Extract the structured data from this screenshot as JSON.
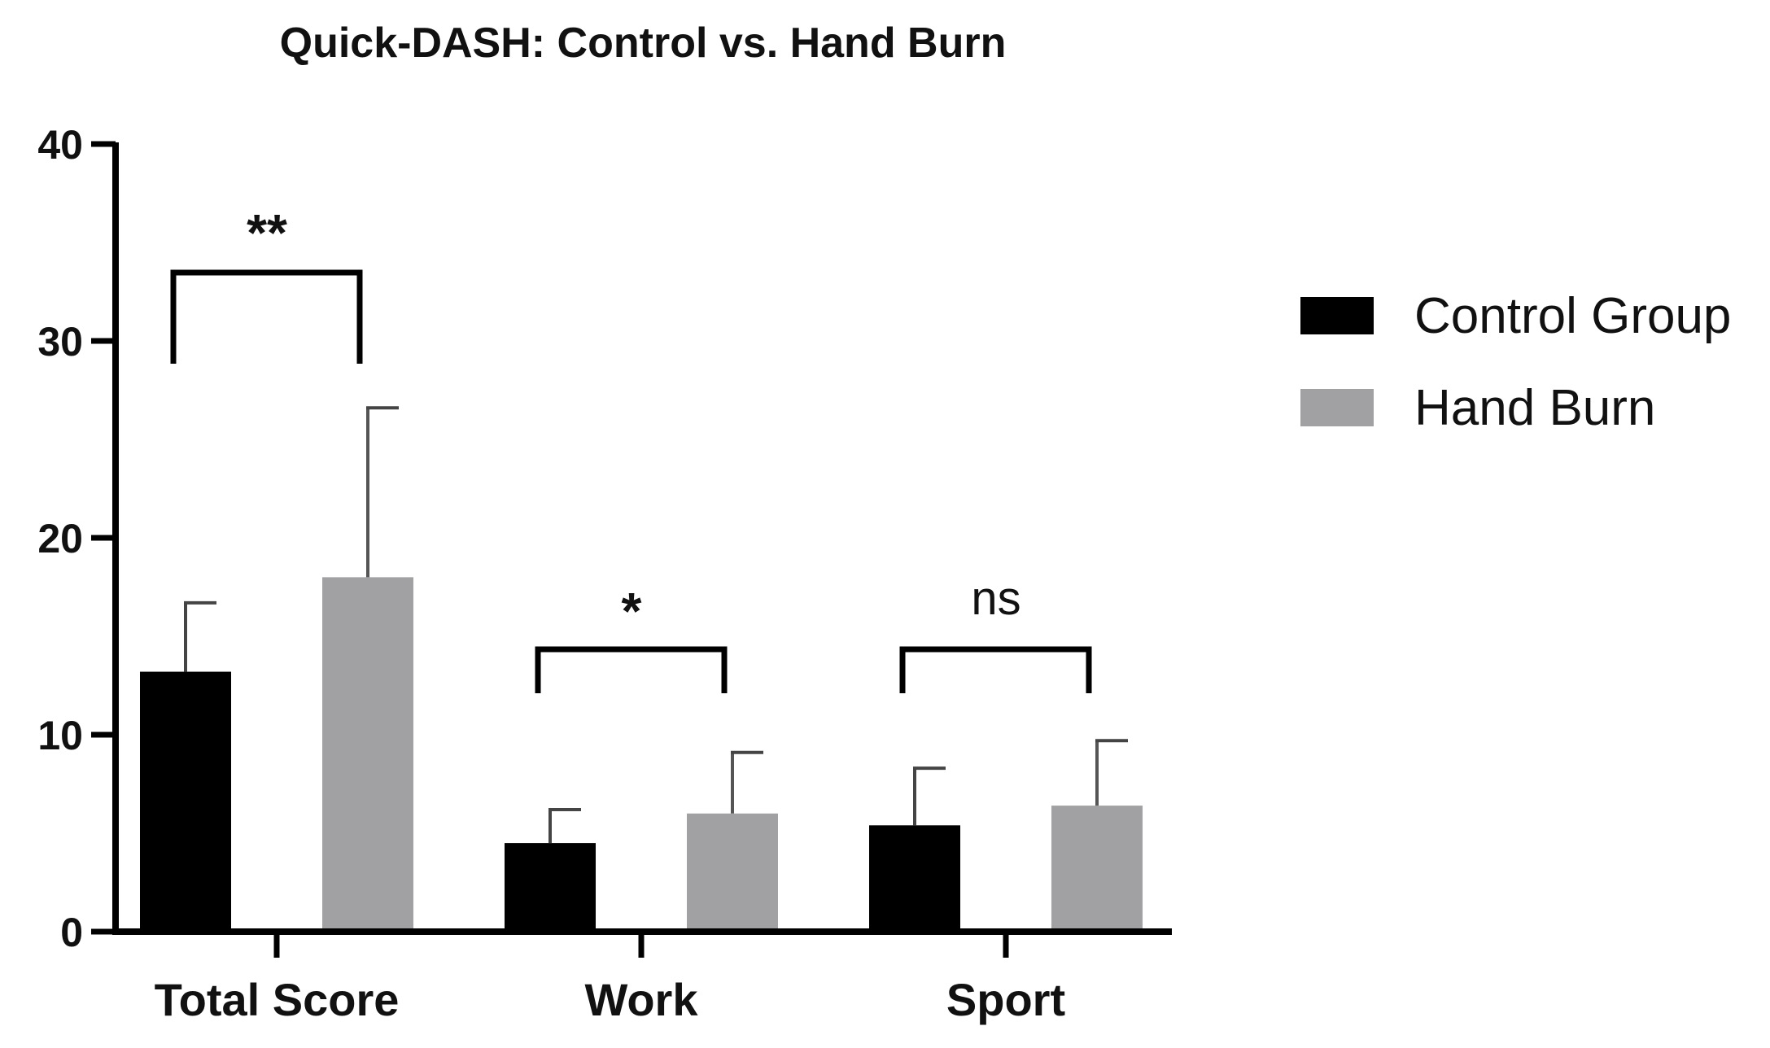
{
  "chart_data": {
    "type": "bar",
    "title": "Quick-DASH: Control vs. Hand Burn",
    "xlabel": "",
    "ylabel": "",
    "ylim": [
      0,
      40
    ],
    "yticks": [
      "0",
      "10",
      "20",
      "30",
      "40"
    ],
    "categories": [
      "Total Score",
      "Work",
      "Sport"
    ],
    "series": [
      {
        "name": "Control Group",
        "color": "#000000",
        "values": [
          13.2,
          4.5,
          5.4
        ],
        "error": [
          3.5,
          1.7,
          2.9
        ]
      },
      {
        "name": "Hand Burn",
        "color": "#a1a1a4",
        "values": [
          18.0,
          6.0,
          6.4
        ],
        "error": [
          8.6,
          3.1,
          3.3
        ]
      }
    ],
    "significance": [
      "**",
      "*",
      "ns"
    ],
    "legend_position": "right",
    "grid": false
  }
}
